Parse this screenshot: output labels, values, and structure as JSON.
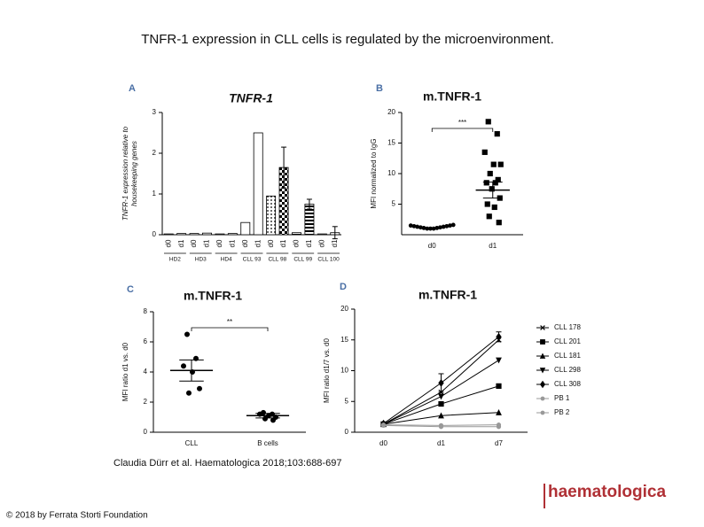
{
  "slide": {
    "title": "TNFR-1 expression in CLL cells is regulated by the microenvironment.",
    "citation": "Claudia Dürr et al. Haematologica 2018;103:688-697",
    "copyright": "© 2018 by Ferrata Storti Foundation",
    "logo": "haematologica"
  },
  "chart_data": [
    {
      "type": "bar",
      "panel": "A",
      "title": "TNFR-1",
      "y_label": [
        "TNFR-1 expression relative to",
        "housekeeping genes"
      ],
      "categories": [
        "d0",
        "d1",
        "d0",
        "d1",
        "d0",
        "d1",
        "d0",
        "d1",
        "d0",
        "d1",
        "d0",
        "d1",
        "d0",
        "d1"
      ],
      "groups": [
        "HD2",
        "HD3",
        "HD4",
        "CLL 93",
        "CLL 98",
        "CLL 99",
        "CLL 100"
      ],
      "values": [
        0.02,
        0.03,
        0.03,
        0.04,
        0.02,
        0.03,
        0.3,
        2.5,
        0.95,
        1.65,
        0.05,
        0.75,
        0.02,
        0.05
      ],
      "errors": [
        null,
        null,
        null,
        null,
        null,
        null,
        null,
        null,
        null,
        0.5,
        null,
        0.12,
        null,
        0.15
      ],
      "fills": [
        "white",
        "white",
        "white",
        "white",
        "white",
        "white",
        "white",
        "white",
        "dots",
        "checks",
        "stripes",
        "stripes",
        "white",
        "white"
      ],
      "ylim": [
        0,
        3
      ],
      "yticks": [
        0,
        1,
        2,
        3
      ]
    },
    {
      "type": "strip",
      "panel": "B",
      "title": "m.TNFR-1",
      "y_label": "MFI normalized to IgG",
      "categories": [
        "d0",
        "d1"
      ],
      "points": [
        [
          1.5,
          1.4,
          1.3,
          1.2,
          1.1,
          1.0,
          1.0,
          1.0,
          1.1,
          1.2,
          1.3,
          1.4,
          1.5,
          1.6
        ],
        [
          18.5,
          16.5,
          13.5,
          11.5,
          11.5,
          10,
          9,
          8.5,
          8.5,
          7.5,
          6,
          5,
          4.5,
          3,
          2
        ]
      ],
      "means": [
        null,
        7.3
      ],
      "errors": [
        null,
        1.3
      ],
      "significance": "***",
      "ylim": [
        0,
        20
      ],
      "yticks": [
        5,
        10,
        15,
        20
      ]
    },
    {
      "type": "strip",
      "panel": "C",
      "title": "m.TNFR-1",
      "y_label": "MFI ratio d1 vs. d0",
      "categories": [
        "CLL",
        "B cells"
      ],
      "points": [
        [
          6.5,
          4.9,
          4.4,
          4.0,
          2.9,
          2.6
        ],
        [
          1.3,
          1.2,
          1.2,
          1.1,
          1.0,
          0.9,
          0.8
        ]
      ],
      "means": [
        4.1,
        1.1
      ],
      "errors": [
        0.7,
        0.15
      ],
      "significance": "**",
      "ylim": [
        0,
        8
      ],
      "yticks": [
        0,
        2,
        4,
        6,
        8
      ]
    },
    {
      "type": "line",
      "panel": "D",
      "title": "m.TNFR-1",
      "y_label": "MFI ratio d1/7 vs. d0",
      "categories": [
        "d0",
        "d1",
        "d7"
      ],
      "series": [
        {
          "name": "CLL 178",
          "color": "#000000",
          "marker": "x",
          "values": [
            1.3,
            6.5,
            15.0
          ]
        },
        {
          "name": "CLL 201",
          "color": "#000000",
          "marker": "square",
          "values": [
            1.3,
            4.6,
            7.5
          ]
        },
        {
          "name": "CLL 181",
          "color": "#000000",
          "marker": "triangle",
          "values": [
            1.3,
            2.7,
            3.2
          ]
        },
        {
          "name": "CLL 298",
          "color": "#000000",
          "marker": "triangle-down",
          "values": [
            1.3,
            5.8,
            11.7
          ]
        },
        {
          "name": "CLL 308",
          "color": "#000000",
          "marker": "diamond",
          "values": [
            1.4,
            8.0,
            15.5
          ],
          "errors": [
            null,
            1.5,
            0.8
          ]
        },
        {
          "name": "PB 1",
          "color": "#999999",
          "marker": "circle",
          "values": [
            1.2,
            1.1,
            1.2
          ]
        },
        {
          "name": "PB 2",
          "color": "#999999",
          "marker": "circle",
          "values": [
            1.1,
            0.9,
            0.9
          ]
        }
      ],
      "ylim": [
        0,
        20
      ],
      "yticks": [
        0,
        5,
        10,
        15,
        20
      ]
    }
  ]
}
